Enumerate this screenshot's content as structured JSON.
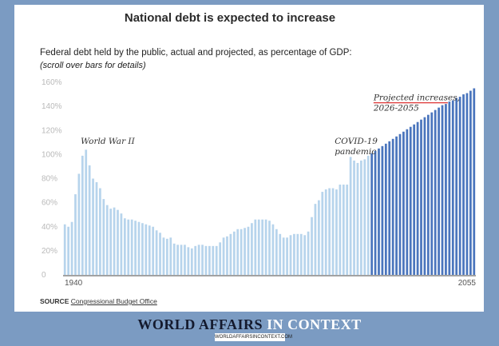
{
  "chart_data": {
    "type": "bar",
    "title": "National debt is expected to increase",
    "subtitle": "Federal debt held by the public, actual and projected, as percentage of GDP:",
    "note": "(scroll over bars for details)",
    "xlabel": "",
    "ylabel": "",
    "ylim": [
      0,
      160
    ],
    "yticks": [
      "0",
      "20%",
      "40%",
      "60%",
      "80%",
      "100%",
      "120%",
      "140%",
      "160%"
    ],
    "x_tick_labels": [
      "1940",
      "2055"
    ],
    "grid": false,
    "years": [
      1939,
      1940,
      1941,
      1942,
      1943,
      1944,
      1945,
      1946,
      1947,
      1948,
      1949,
      1950,
      1951,
      1952,
      1953,
      1954,
      1955,
      1956,
      1957,
      1958,
      1959,
      1960,
      1961,
      1962,
      1963,
      1964,
      1965,
      1966,
      1967,
      1968,
      1969,
      1970,
      1971,
      1972,
      1973,
      1974,
      1975,
      1976,
      1977,
      1978,
      1979,
      1980,
      1981,
      1982,
      1983,
      1984,
      1985,
      1986,
      1987,
      1988,
      1989,
      1990,
      1991,
      1992,
      1993,
      1994,
      1995,
      1996,
      1997,
      1998,
      1999,
      2000,
      2001,
      2002,
      2003,
      2004,
      2005,
      2006,
      2007,
      2008,
      2009,
      2010,
      2011,
      2012,
      2013,
      2014,
      2015,
      2016,
      2017,
      2018,
      2019,
      2020,
      2021,
      2022,
      2023,
      2024,
      2025,
      2026,
      2027,
      2028,
      2029,
      2030,
      2031,
      2032,
      2033,
      2034,
      2035,
      2036,
      2037,
      2038,
      2039,
      2040,
      2041,
      2042,
      2043,
      2044,
      2045,
      2046,
      2047,
      2048,
      2049,
      2050,
      2051,
      2052,
      2053,
      2054,
      2055
    ],
    "series": [
      {
        "values": [
          42,
          40,
          44,
          67,
          84,
          99,
          104,
          91,
          80,
          77,
          72,
          63,
          58,
          55,
          56,
          54,
          51,
          47,
          46,
          46,
          45,
          44,
          43,
          42,
          41,
          40,
          37,
          35,
          31,
          30,
          31,
          26,
          25,
          25,
          25,
          23,
          22,
          24,
          25,
          25,
          24,
          24,
          24,
          24,
          27,
          31,
          32,
          34,
          36,
          38,
          38,
          39,
          40,
          43,
          46,
          46,
          46,
          46,
          45,
          42,
          38,
          34,
          31,
          31,
          33,
          34,
          34,
          34,
          33,
          36,
          48,
          59,
          62,
          69,
          71,
          72,
          72,
          71,
          75,
          75,
          75,
          98,
          95,
          93,
          95,
          96,
          99
        ],
        "color": "#b7d4ec"
      },
      {
        "name": "Projected increases, 2026-2055",
        "values": [
          101,
          103,
          105,
          107,
          109,
          111,
          113,
          115,
          117,
          119,
          121,
          123,
          125,
          127,
          129,
          131,
          133,
          135,
          137,
          139,
          141,
          142,
          144,
          145,
          147,
          148,
          150,
          151,
          153,
          155
        ],
        "color": "#4a75bd"
      }
    ],
    "annotations": [
      {
        "text": "World War II",
        "x": 1944,
        "y": 109
      },
      {
        "lines": [
          "COVID-19",
          "pandemic"
        ],
        "x": 2016,
        "y": 109
      },
      {
        "lines": [
          "Projected increases,",
          "2026-2055"
        ],
        "x": 2027,
        "y": 145
      }
    ]
  },
  "source": {
    "label": "SOURCE",
    "text": "Congressional Budget Office"
  },
  "footer": {
    "brand_main": "WORLD AFFAIRS",
    "brand_accent": "IN CONTEXT",
    "url": "WORLDAFFAIRSINCONTEXT.COM"
  },
  "colors": {
    "background": "#7b9bc2",
    "actual_bar": "#b7d4ec",
    "projected_bar": "#4a75bd",
    "annotation_underline": "#d33"
  }
}
